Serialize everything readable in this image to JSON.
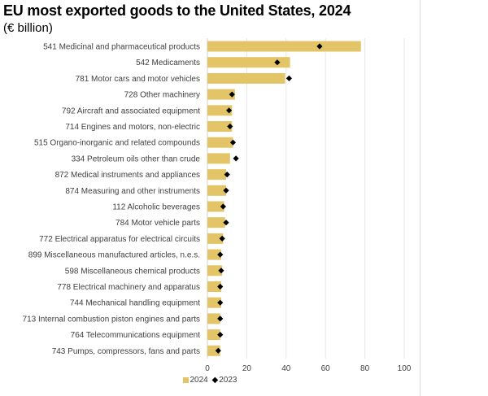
{
  "title": "EU most exported goods to the United States, 2024",
  "subtitle": "(€ billion)",
  "chart_data": {
    "type": "bar",
    "orientation": "horizontal",
    "categories": [
      "541 Medicinal and pharmaceutical products",
      "542 Medicaments",
      "781 Motor cars and motor vehicles",
      "728 Other machinery",
      "792 Aircraft and associated equipment",
      "714 Engines and motors, non-electric",
      "515 Organo-inorganic and related compounds",
      "334 Petroleum oils other than crude",
      "872 Medical instruments and appliances",
      "874 Measuring and other instruments",
      "112 Alcoholic beverages",
      "784 Motor vehicle parts",
      "772 Electrical apparatus for electrical circuits",
      "899 Miscellaneous manufactured articles, n.e.s.",
      "598 Miscellaneous chemical products",
      "778 Electrical machinery and apparatus",
      "744 Mechanical handling equipment",
      "713 Internal combustion piston engines and parts",
      "764 Telecommunications equipment",
      "743 Pumps, compressors, fans and parts"
    ],
    "series": [
      {
        "name": "2024",
        "mark": "bar",
        "color": "#e3c567",
        "values": [
          78,
          42,
          39.5,
          14,
          12.5,
          12.5,
          13,
          11.5,
          9.5,
          9.5,
          8.5,
          9,
          8,
          7,
          7.5,
          7,
          7,
          6.5,
          6.5,
          6.5
        ]
      },
      {
        "name": "2023",
        "mark": "diamond",
        "color": "#000000",
        "values": [
          57,
          35.5,
          41.5,
          12.5,
          11,
          11.5,
          13,
          14.5,
          10,
          9.5,
          8,
          9.5,
          7.5,
          6.5,
          7,
          6.5,
          6.5,
          6.5,
          6.5,
          5.5
        ]
      }
    ],
    "x_ticks": [
      0,
      20,
      40,
      60,
      80,
      100
    ],
    "xlim": [
      0,
      100
    ],
    "grid": true,
    "legend_position": "bottom"
  }
}
